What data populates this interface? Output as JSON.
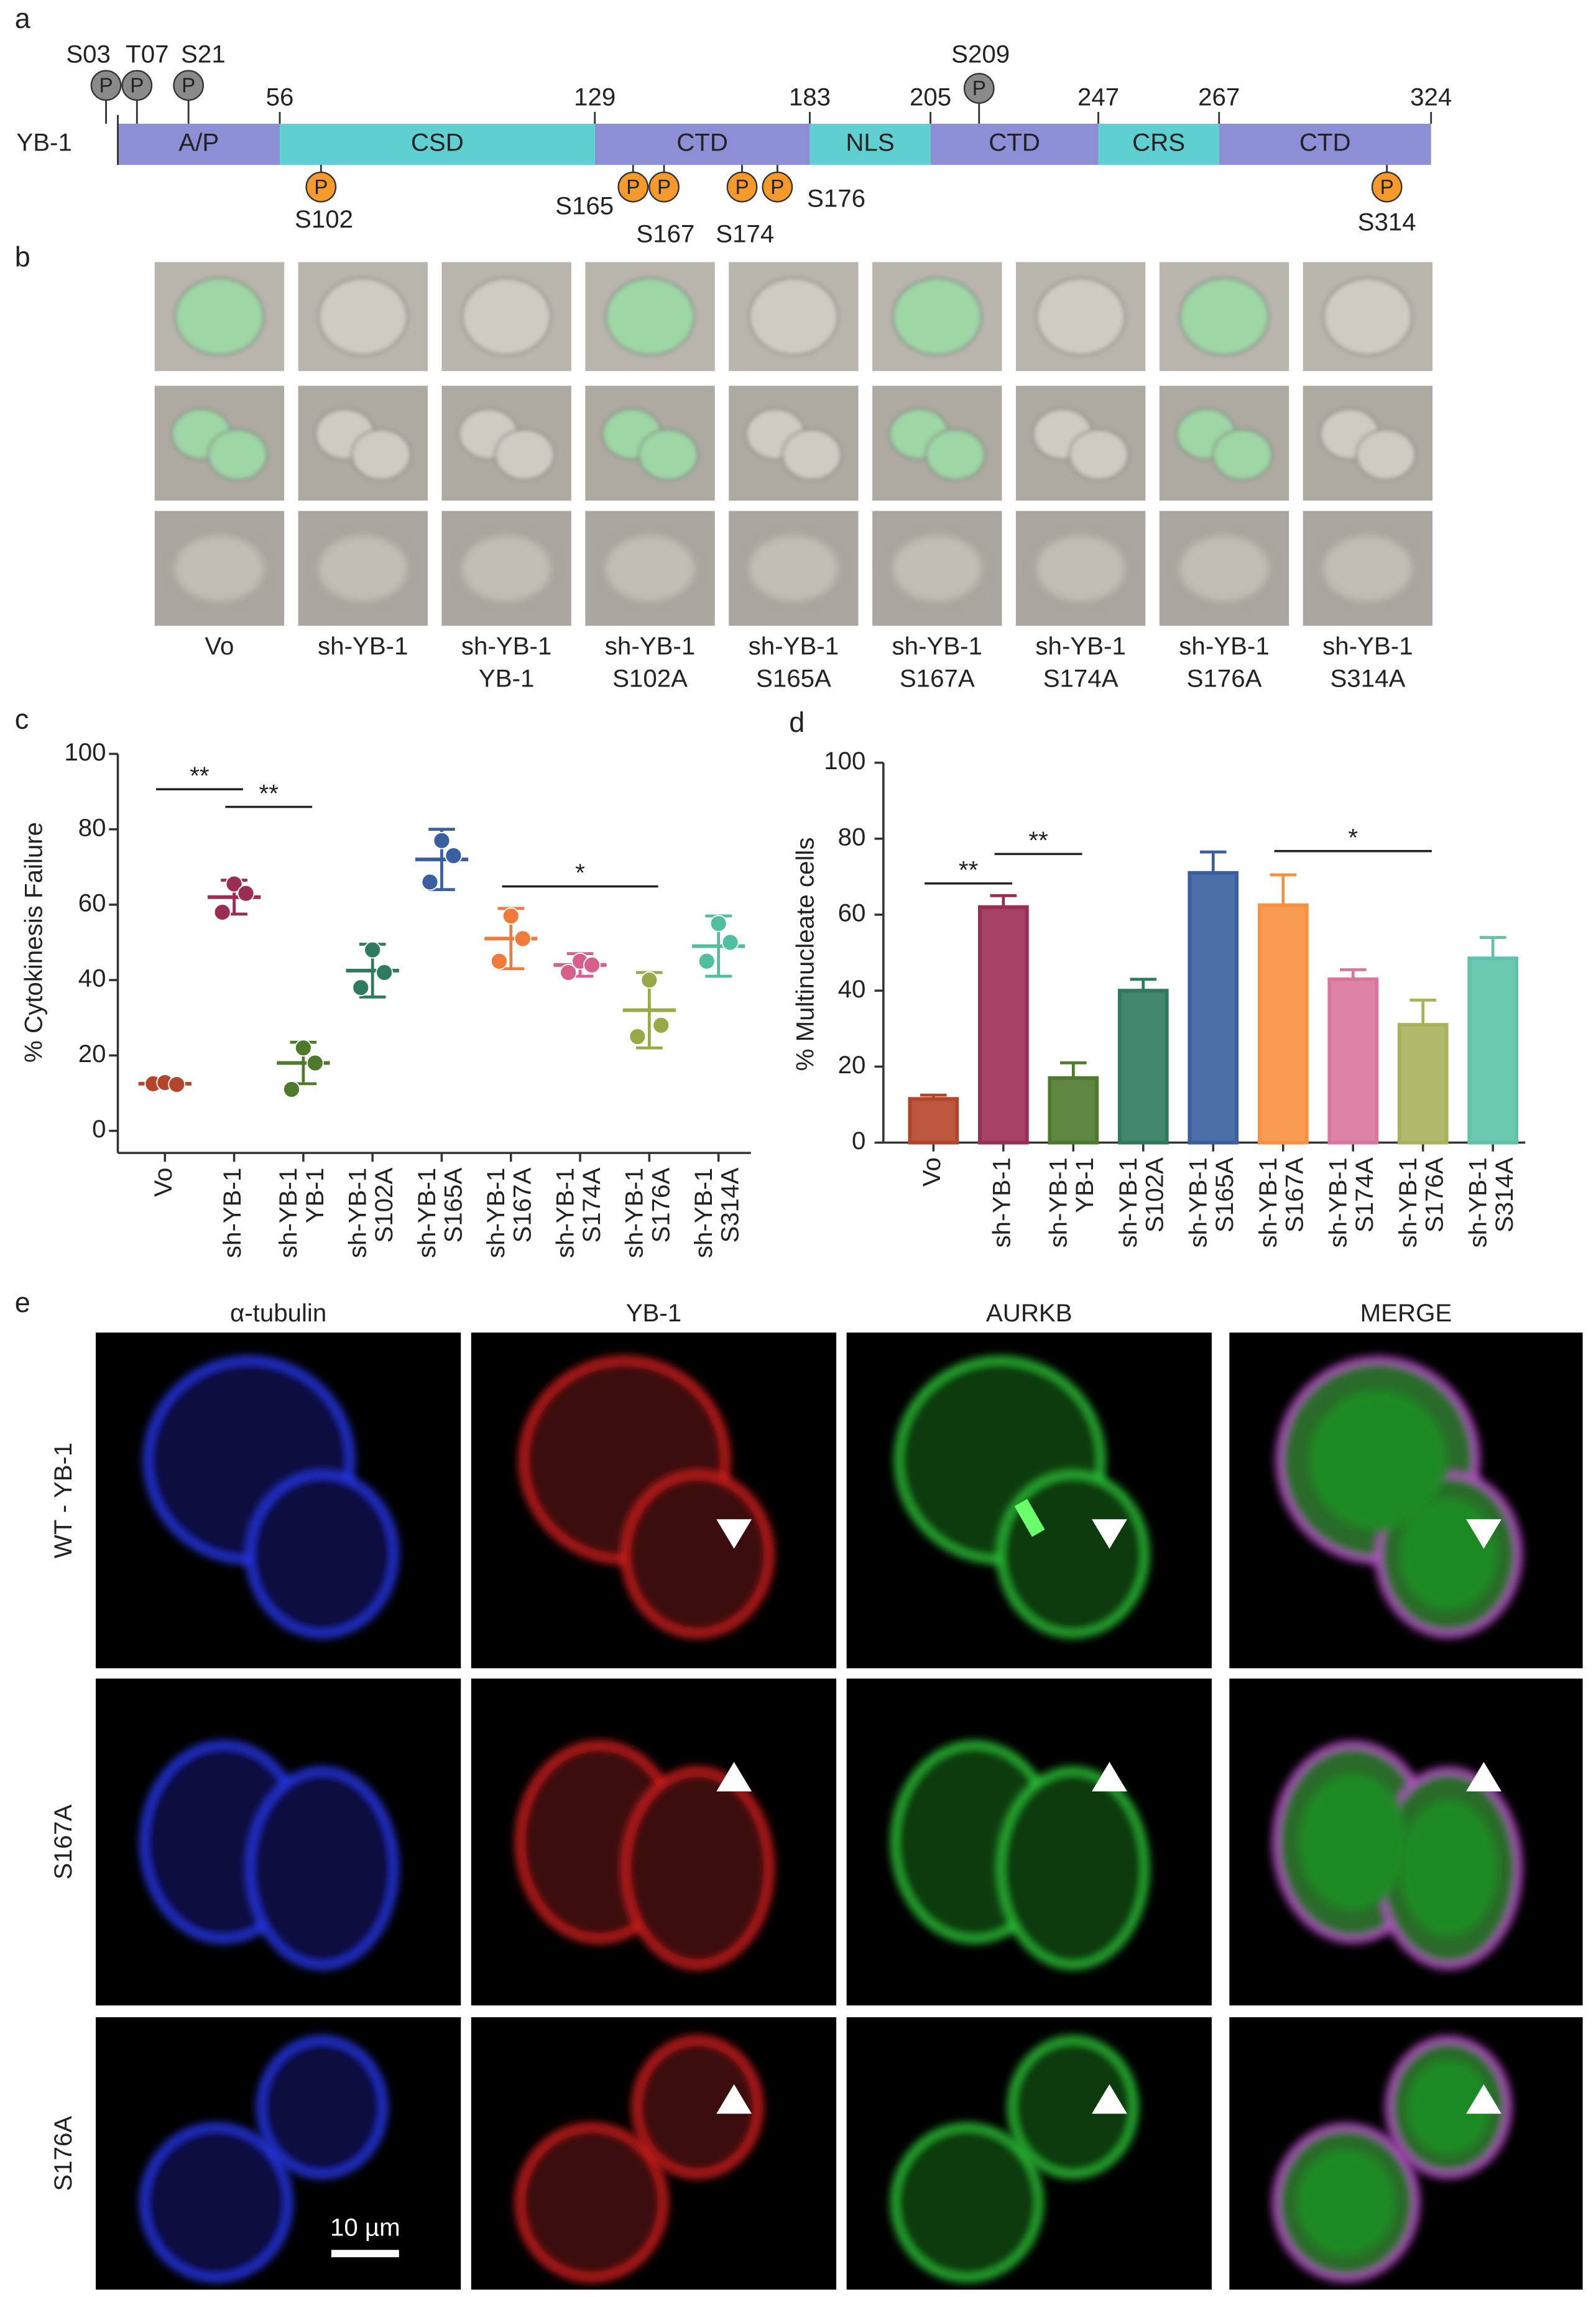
{
  "panel_labels": [
    "a",
    "b",
    "c",
    "d",
    "e"
  ],
  "domain_map": {
    "protein": "YB-1",
    "domains": [
      "A/P",
      "CSD",
      "CTD",
      "NLS",
      "CTD",
      "CRS",
      "CTD"
    ],
    "domain_colors": [
      "#8d8fd6",
      "#5fcfd2",
      "#8d8fd6",
      "#5fcfd2",
      "#8d8fd6",
      "#5fcfd2",
      "#8d8fd6"
    ],
    "boundaries": [
      56,
      129,
      183,
      205,
      247,
      267,
      324
    ],
    "phospho_symbol": "P",
    "sites_above": [
      "S03",
      "T07",
      "S21",
      "S209"
    ],
    "sites_below": [
      "S102",
      "S165",
      "S167",
      "S174",
      "S176",
      "S314"
    ],
    "above_color": "#8a8a8a",
    "below_color": "#f59a2a"
  },
  "cell_images": {
    "columns": [
      [
        "Vo"
      ],
      [
        "sh-YB-1"
      ],
      [
        "sh-YB-1",
        "YB-1"
      ],
      [
        "sh-YB-1",
        "S102A"
      ],
      [
        "sh-YB-1",
        "S165A"
      ],
      [
        "sh-YB-1",
        "S167A"
      ],
      [
        "sh-YB-1",
        "S174A"
      ],
      [
        "sh-YB-1",
        "S176A"
      ],
      [
        "sh-YB-1",
        "S314A"
      ]
    ]
  },
  "chart_data": [
    {
      "type": "dot",
      "y_label": "% Cytokinesis Failure",
      "categories": [
        [
          "Vo"
        ],
        [
          "sh-YB-1"
        ],
        [
          "sh-YB-1",
          "YB-1"
        ],
        [
          "sh-YB-1",
          "S102A"
        ],
        [
          "sh-YB-1",
          "S165A"
        ],
        [
          "sh-YB-1",
          "S167A"
        ],
        [
          "sh-YB-1",
          "S174A"
        ],
        [
          "sh-YB-1",
          "S176A"
        ],
        [
          "sh-YB-1",
          "S314A"
        ]
      ],
      "colors": [
        "#b5452a",
        "#9b2d55",
        "#4e7a2c",
        "#2d7a5e",
        "#3a5fa0",
        "#f07a3a",
        "#d65f8c",
        "#9aa848",
        "#4fbfa0"
      ],
      "points": [
        [
          12.5,
          12.8,
          12.3
        ],
        [
          58,
          65.5,
          63
        ],
        [
          11,
          22,
          18
        ],
        [
          38,
          48,
          42
        ],
        [
          66,
          77,
          73
        ],
        [
          45,
          57,
          51
        ],
        [
          42,
          45,
          44
        ],
        [
          25,
          40,
          28
        ],
        [
          45,
          55,
          50
        ]
      ],
      "means": [
        12.5,
        62,
        18,
        42.5,
        72,
        51,
        44,
        32,
        49
      ],
      "sd": [
        0.5,
        4.5,
        5.5,
        7,
        8,
        8,
        3,
        10,
        8
      ],
      "ylim": [
        0,
        100
      ],
      "yticks": [
        0,
        20,
        40,
        60,
        80,
        100
      ],
      "annotations": [
        {
          "text": "**",
          "from": 0,
          "to": 1
        },
        {
          "text": "**",
          "from": 1,
          "to": 2
        },
        {
          "text": "*",
          "from": 5,
          "to": 7
        }
      ]
    },
    {
      "type": "bar",
      "y_label": "% Multinucleate cells",
      "categories": [
        [
          "Vo"
        ],
        [
          "sh-YB-1"
        ],
        [
          "sh-YB-1",
          "YB-1"
        ],
        [
          "sh-YB-1",
          "S102A"
        ],
        [
          "sh-YB-1",
          "S165A"
        ],
        [
          "sh-YB-1",
          "S167A"
        ],
        [
          "sh-YB-1",
          "S174A"
        ],
        [
          "sh-YB-1",
          "S176A"
        ],
        [
          "sh-YB-1",
          "S314A"
        ]
      ],
      "colors": [
        "#b5452a",
        "#9b2d55",
        "#4e7a2c",
        "#2d7a5e",
        "#3a5fa0",
        "#f7913f",
        "#d9769c",
        "#a8b25a",
        "#5cc4a8"
      ],
      "values": [
        11.5,
        62,
        17,
        40,
        71,
        62.5,
        43,
        31,
        48.5
      ],
      "errors": [
        1,
        3,
        4,
        3,
        5.5,
        8,
        2.5,
        6.5,
        5.5
      ],
      "ylim": [
        0,
        100
      ],
      "yticks": [
        0,
        20,
        40,
        60,
        80,
        100
      ],
      "annotations": [
        {
          "text": "**",
          "from": 0,
          "to": 1
        },
        {
          "text": "**",
          "from": 1,
          "to": 2
        },
        {
          "text": "*",
          "from": 5,
          "to": 7
        }
      ]
    }
  ],
  "microscopy": {
    "channels": [
      "α-tubulin",
      "YB-1",
      "AURKB",
      "MERGE"
    ],
    "rows": [
      "WT - YB-1",
      "S167A",
      "S176A"
    ],
    "scale_bar": "10 µm"
  }
}
